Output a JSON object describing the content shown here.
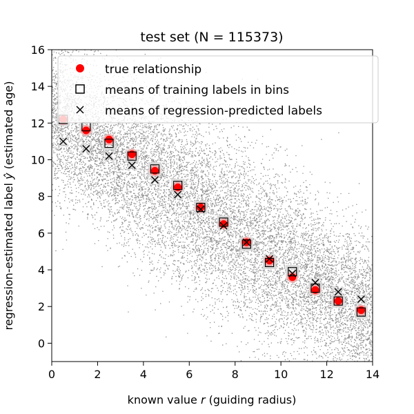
{
  "chart_data": {
    "type": "scatter",
    "title": "test set (N = 115373)",
    "xlabel_prefix": "known value ",
    "xlabel_var": "r",
    "xlabel_suffix": " (guiding radius)",
    "ylabel_prefix": "regression-estimated label ",
    "ylabel_var": "ŷ",
    "ylabel_suffix": " (estimated age)",
    "xlim": [
      0,
      14
    ],
    "ylim": [
      -1,
      16
    ],
    "xticks": [
      0,
      2,
      4,
      6,
      8,
      10,
      12,
      14
    ],
    "yticks": [
      0,
      2,
      4,
      6,
      8,
      10,
      12,
      14,
      16
    ],
    "legend_position": "top-right",
    "scatter_color": "#000000",
    "true_color": "#ff0000",
    "series": [
      {
        "name": "true relationship",
        "marker": "circle",
        "x": [
          0.5,
          1.5,
          2.5,
          3.5,
          4.5,
          5.5,
          6.5,
          7.5,
          8.5,
          9.5,
          10.5,
          11.5,
          12.5,
          13.5
        ],
        "y": [
          12.2,
          11.6,
          11.1,
          10.3,
          9.4,
          8.5,
          7.4,
          6.5,
          5.5,
          4.5,
          3.6,
          2.9,
          2.3,
          1.8
        ]
      },
      {
        "name": "means of training labels in bins",
        "marker": "square",
        "x": [
          0.5,
          1.5,
          2.5,
          3.5,
          4.5,
          5.5,
          6.5,
          7.5,
          8.5,
          9.5,
          10.5,
          11.5,
          12.5,
          13.5
        ],
        "y": [
          12.2,
          11.8,
          10.9,
          10.2,
          9.5,
          8.6,
          7.4,
          6.6,
          5.4,
          4.4,
          3.9,
          3.0,
          2.3,
          1.7
        ]
      },
      {
        "name": "means of regression-predicted labels",
        "marker": "x",
        "x": [
          0.5,
          1.5,
          2.5,
          3.5,
          4.5,
          5.5,
          6.5,
          7.5,
          8.5,
          9.5,
          10.5,
          11.5,
          12.5,
          13.5
        ],
        "y": [
          11.0,
          10.6,
          10.2,
          9.7,
          8.9,
          8.1,
          7.3,
          6.4,
          5.5,
          4.6,
          3.8,
          3.3,
          2.8,
          2.4
        ]
      }
    ]
  }
}
